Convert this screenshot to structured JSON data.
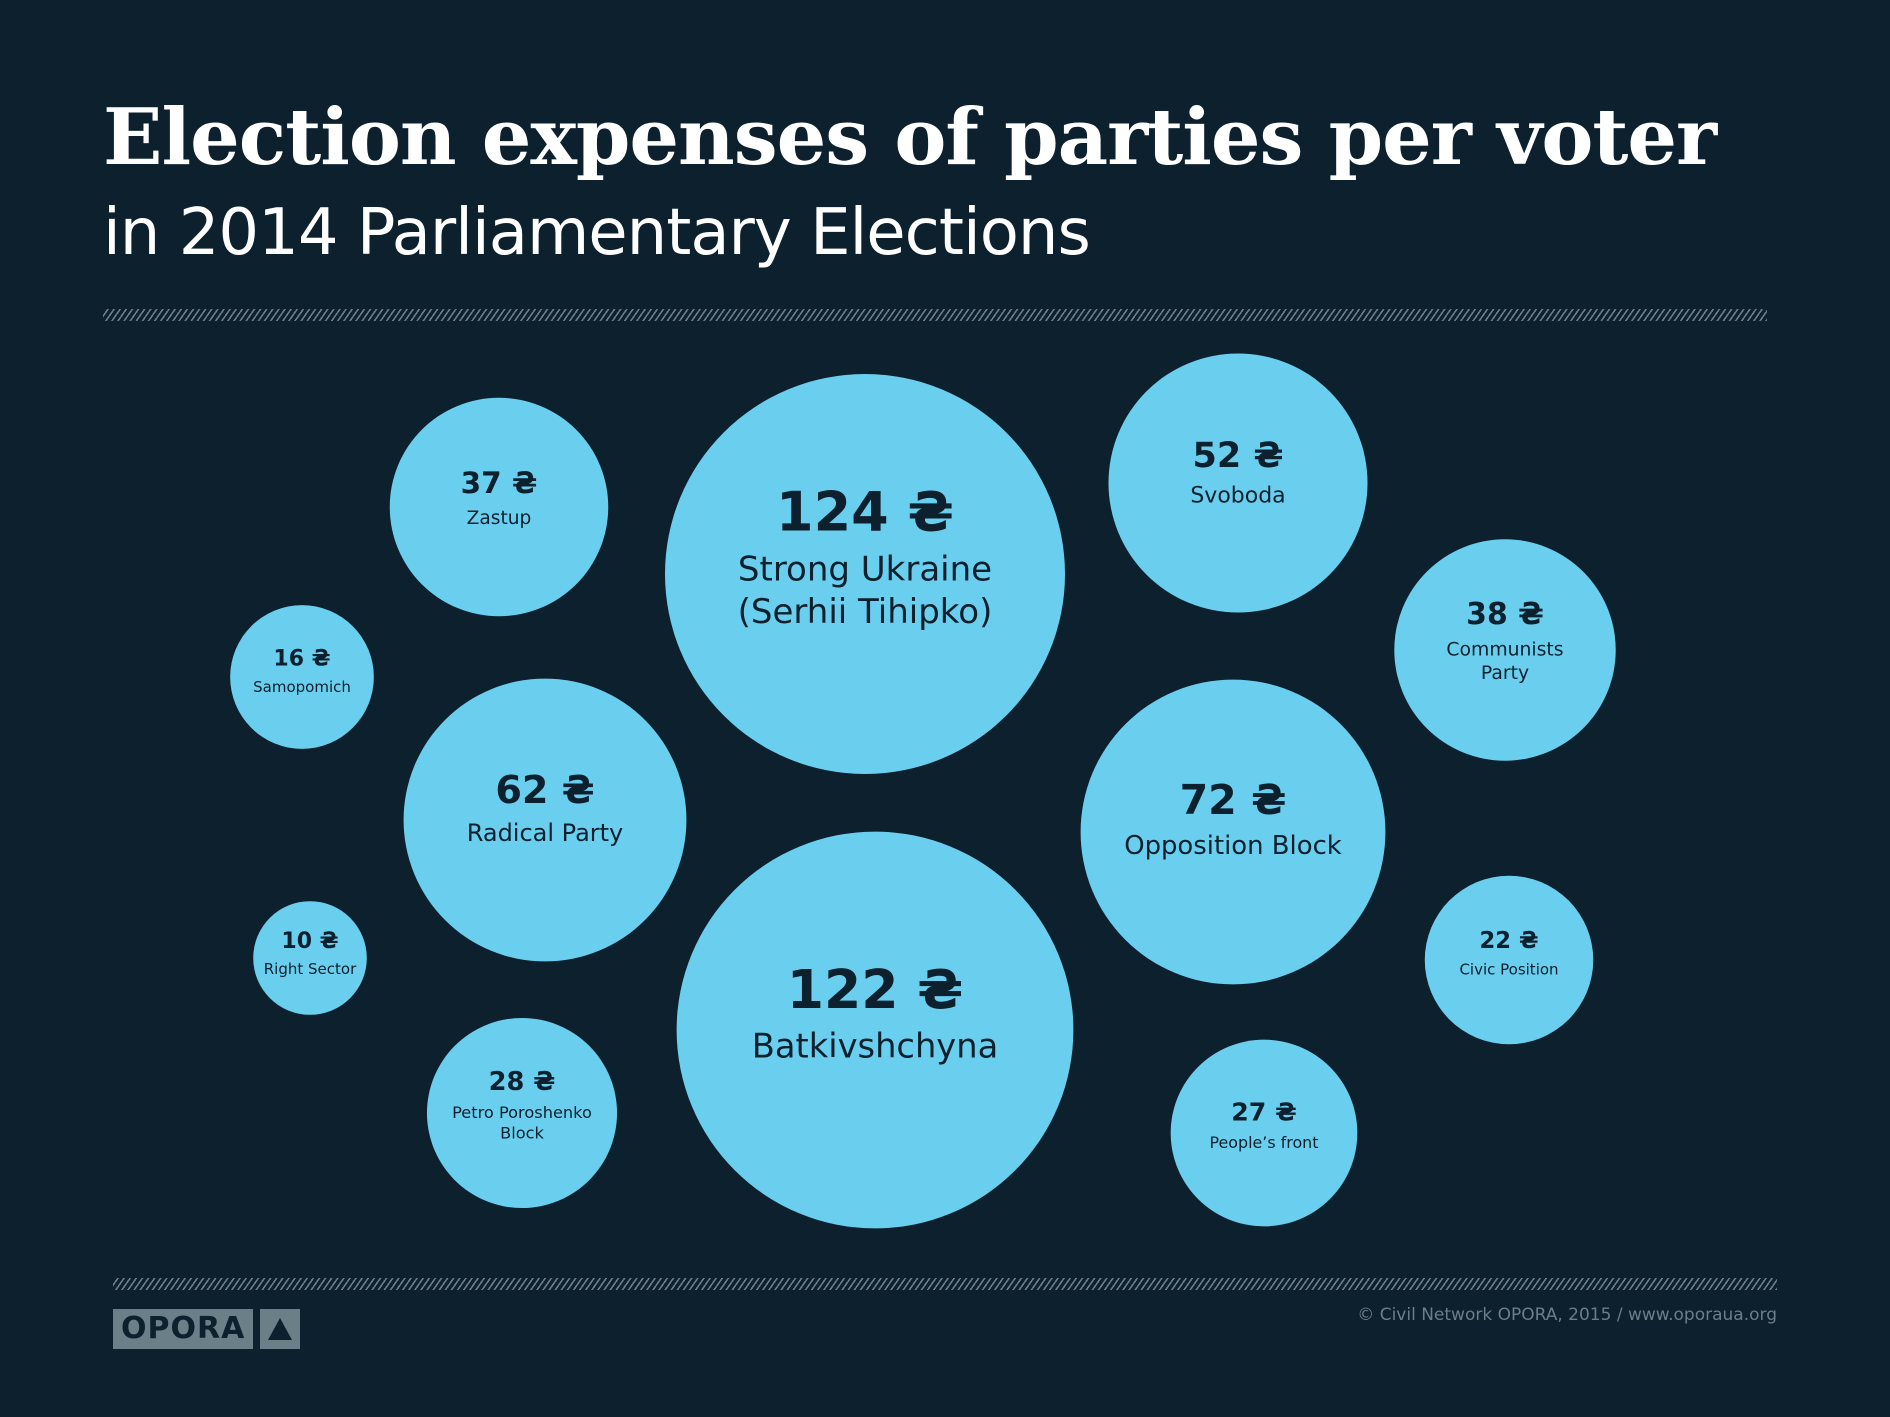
{
  "header": {
    "title": "Election expenses of parties per voter",
    "subtitle": "in 2014 Parliamentary Elections"
  },
  "chart_data": {
    "type": "bubble",
    "title": "Election expenses of parties per voter",
    "subtitle": "in 2014 Parliamentary Elections",
    "unit": "₴",
    "currency_symbol": "₴",
    "colors": {
      "bubble": "#6acfef",
      "background": "#0c202d",
      "text": "#0c202d"
    },
    "series": [
      {
        "party": "Strong Ukraine (Serhii Tihipko)",
        "label_lines": [
          "Strong Ukraine",
          "(Serhii Tihipko)"
        ],
        "value": 124
      },
      {
        "party": "Batkivshchyna",
        "label_lines": [
          "Batkivshchyna"
        ],
        "value": 122
      },
      {
        "party": "Opposition Block",
        "label_lines": [
          "Opposition Block"
        ],
        "value": 72
      },
      {
        "party": "Radical Party",
        "label_lines": [
          "Radical Party"
        ],
        "value": 62
      },
      {
        "party": "Svoboda",
        "label_lines": [
          "Svoboda"
        ],
        "value": 52
      },
      {
        "party": "Communists Party",
        "label_lines": [
          "Communists",
          "Party"
        ],
        "value": 38
      },
      {
        "party": "Zastup",
        "label_lines": [
          "Zastup"
        ],
        "value": 37
      },
      {
        "party": "Petro Poroshenko Block",
        "label_lines": [
          "Petro Poroshenko",
          "Block"
        ],
        "value": 28
      },
      {
        "party": "People's front",
        "label_lines": [
          "People’s front"
        ],
        "value": 27
      },
      {
        "party": "Civic Position",
        "label_lines": [
          "Civic Position"
        ],
        "value": 22
      },
      {
        "party": "Samopomich",
        "label_lines": [
          "Samopomich"
        ],
        "value": 16
      },
      {
        "party": "Right Sector",
        "label_lines": [
          "Right Sector"
        ],
        "value": 10
      }
    ]
  },
  "footer": {
    "logo_text": "OPORA",
    "logo_icon": "triangle-icon",
    "credit": "© Civil Network OPORA, 2015 / www.oporaua.org"
  }
}
